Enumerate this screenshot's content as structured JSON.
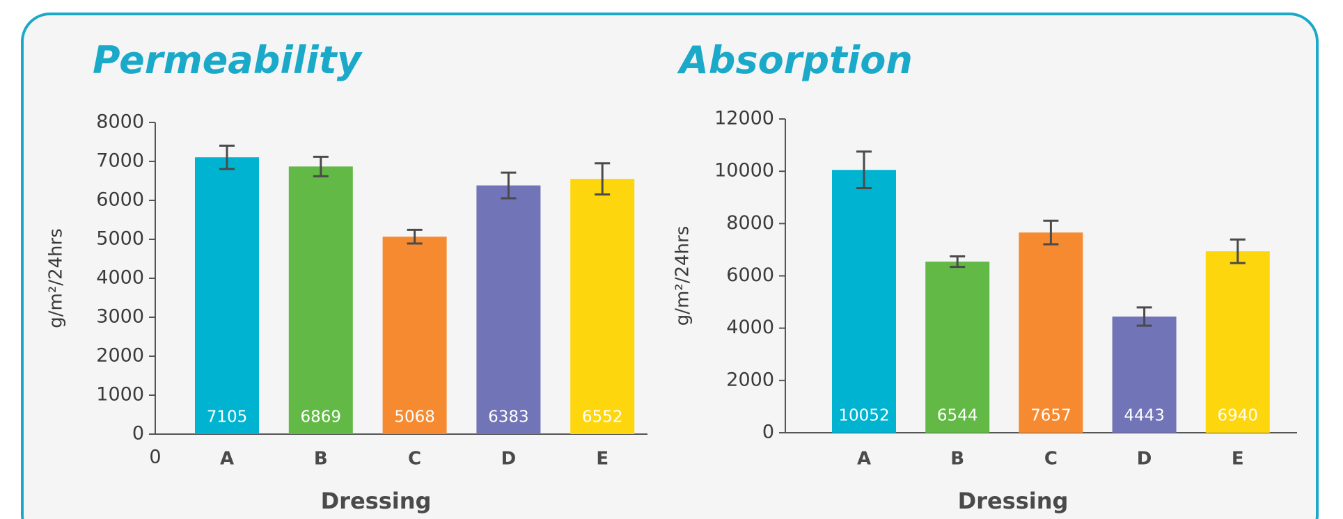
{
  "chart_data": [
    {
      "type": "bar",
      "title": "Permeability",
      "xlabel": "Dressing",
      "ylabel": "g/m²/24hrs",
      "annotations": [
        "0"
      ],
      "categories": [
        "A",
        "B",
        "C",
        "D",
        "E"
      ],
      "values": [
        7105,
        6869,
        5068,
        6383,
        6552
      ],
      "value_labels": [
        "7105",
        "6869",
        "5068",
        "6383",
        "6552"
      ],
      "errors": [
        300,
        250,
        175,
        330,
        400
      ],
      "colors": [
        "#00b3d1",
        "#62b946",
        "#f58a31",
        "#7174b6",
        "#fdd60e"
      ],
      "ylim": [
        0,
        8000
      ],
      "yticks": [
        0,
        1000,
        2000,
        3000,
        4000,
        5000,
        6000,
        7000,
        8000
      ]
    },
    {
      "type": "bar",
      "title": "Absorption",
      "xlabel": "Dressing",
      "ylabel": "g/m²/24hrs",
      "categories": [
        "A",
        "B",
        "C",
        "D",
        "E"
      ],
      "values": [
        10052,
        6544,
        7657,
        4443,
        6940
      ],
      "value_labels": [
        "10052",
        "6544",
        "7657",
        "4443",
        "6940"
      ],
      "errors": [
        700,
        200,
        450,
        350,
        450
      ],
      "colors": [
        "#00b3d1",
        "#62b946",
        "#f58a31",
        "#7174b6",
        "#fdd60e"
      ],
      "ylim": [
        0,
        12000
      ],
      "yticks": [
        0,
        2000,
        4000,
        6000,
        8000,
        10000,
        12000
      ]
    }
  ]
}
